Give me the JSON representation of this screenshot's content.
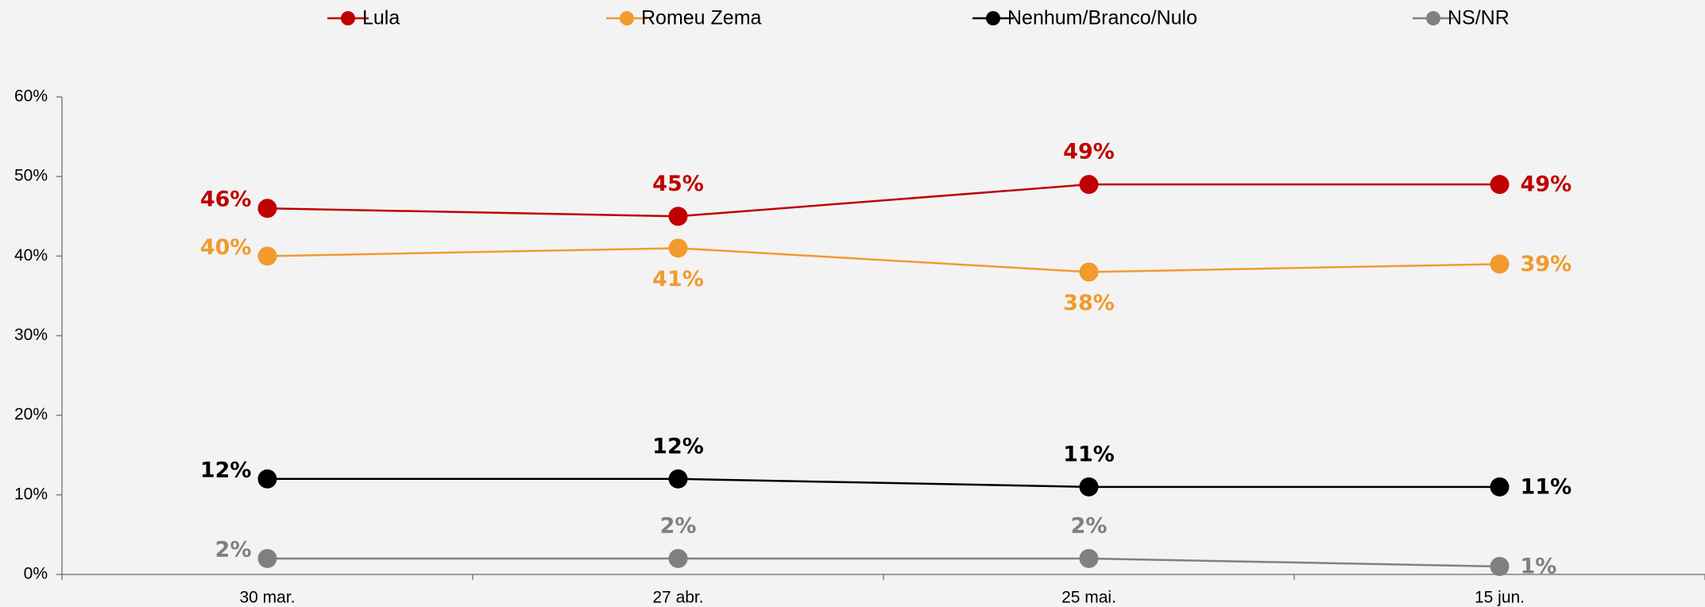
{
  "chart_data": {
    "type": "line",
    "categories": [
      "30 mar.",
      "27 abr.",
      "25 mai.",
      "15 jun."
    ],
    "series": [
      {
        "name": "Lula",
        "color": "#c00000",
        "values": [
          46,
          45,
          49,
          49
        ],
        "value_labels": [
          "46%",
          "45%",
          "49%",
          "49%"
        ]
      },
      {
        "name": "Romeu Zema",
        "color": "#f29a2e",
        "values": [
          40,
          41,
          38,
          39
        ],
        "value_labels": [
          "40%",
          "41%",
          "38%",
          "39%"
        ]
      },
      {
        "name": "Nenhum/Branco/Nulo",
        "color": "#000000",
        "values": [
          12,
          12,
          11,
          11
        ],
        "value_labels": [
          "12%",
          "12%",
          "11%",
          "11%"
        ]
      },
      {
        "name": "NS/NR",
        "color": "#808080",
        "values": [
          2,
          2,
          2,
          1
        ],
        "value_labels": [
          "2%",
          "2%",
          "2%",
          "1%"
        ]
      }
    ],
    "ylim": [
      0,
      60
    ],
    "yticks": [
      {
        "value": 0,
        "label": "0%"
      },
      {
        "value": 10,
        "label": "10%"
      },
      {
        "value": 20,
        "label": "20%"
      },
      {
        "value": 30,
        "label": "30%"
      },
      {
        "value": 40,
        "label": "40%"
      },
      {
        "value": 50,
        "label": "50%"
      },
      {
        "value": 60,
        "label": "60%"
      }
    ],
    "legend": "top"
  }
}
